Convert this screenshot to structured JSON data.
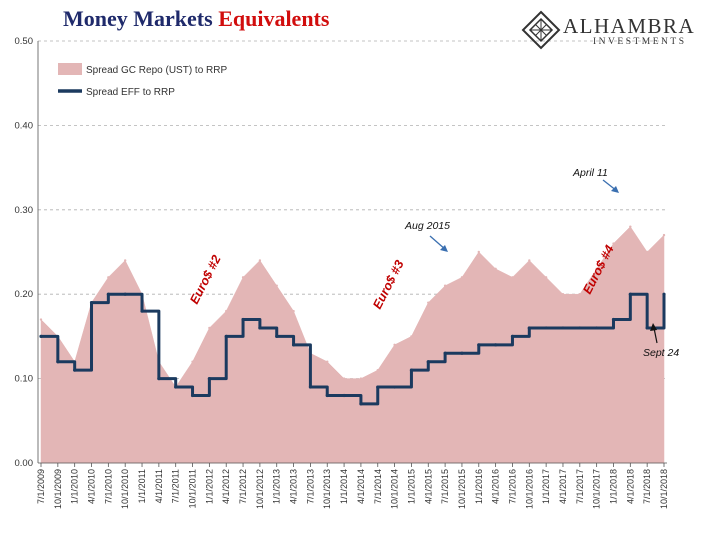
{
  "title": {
    "part1": "Money Markets",
    "part2": "Equivalents"
  },
  "logo": {
    "name": "ALHAMBRA",
    "subtitle": "INVESTMENTS",
    "icon": "diamond-lattice-icon"
  },
  "colors": {
    "title_blue": "#1f2a6b",
    "title_red": "#d10d0d",
    "repo_fill": "#e3b6b6",
    "eff_line": "#1b3a5f",
    "annotation_red": "#c00000",
    "arrow_blue": "#3a6fb0"
  },
  "chart_data": {
    "type": "area",
    "title": "Money Markets Equivalents",
    "xlabel": "",
    "ylabel": "",
    "ylim": [
      0,
      0.5
    ],
    "yticks": [
      "0.00",
      "0.10",
      "0.20",
      "0.30",
      "0.40",
      "0.50"
    ],
    "xticks": [
      "7/1/2009",
      "10/1/2009",
      "1/1/2010",
      "4/1/2010",
      "7/1/2010",
      "10/1/2010",
      "1/1/2011",
      "4/1/2011",
      "7/1/2011",
      "10/1/2011",
      "1/1/2012",
      "4/1/2012",
      "7/1/2012",
      "10/1/2012",
      "1/1/2013",
      "4/1/2013",
      "7/1/2013",
      "10/1/2013",
      "1/1/2014",
      "4/1/2014",
      "7/1/2014",
      "10/1/2014",
      "1/1/2015",
      "4/1/2015",
      "7/1/2015",
      "10/1/2015",
      "1/1/2016",
      "4/1/2016",
      "7/1/2016",
      "10/1/2016",
      "1/1/2017",
      "4/1/2017",
      "7/1/2017",
      "10/1/2017",
      "1/1/2018",
      "4/1/2018",
      "7/1/2018",
      "10/1/2018"
    ],
    "grid": true,
    "legend_position": "top-left",
    "series": [
      {
        "name": "Spread GC Repo (UST) to RRP",
        "type": "area",
        "color": "#e3b6b6",
        "x": [
          "7/1/2009",
          "10/1/2009",
          "1/1/2010",
          "4/1/2010",
          "7/1/2010",
          "10/1/2010",
          "1/1/2011",
          "4/1/2011",
          "7/1/2011",
          "10/1/2011",
          "1/1/2012",
          "4/1/2012",
          "7/1/2012",
          "10/1/2012",
          "1/1/2013",
          "4/1/2013",
          "7/1/2013",
          "10/1/2013",
          "1/1/2014",
          "4/1/2014",
          "7/1/2014",
          "10/1/2014",
          "1/1/2015",
          "4/1/2015",
          "7/1/2015",
          "10/1/2015",
          "1/1/2016",
          "4/1/2016",
          "7/1/2016",
          "10/1/2016",
          "1/1/2017",
          "4/1/2017",
          "7/1/2017",
          "10/1/2017",
          "1/1/2018",
          "4/1/2018",
          "7/1/2018",
          "10/1/2018"
        ],
        "values": [
          0.17,
          0.15,
          0.12,
          0.19,
          0.22,
          0.24,
          0.2,
          0.12,
          0.09,
          0.12,
          0.16,
          0.18,
          0.22,
          0.24,
          0.21,
          0.18,
          0.13,
          0.12,
          0.1,
          0.1,
          0.11,
          0.14,
          0.15,
          0.19,
          0.21,
          0.22,
          0.25,
          0.23,
          0.22,
          0.24,
          0.22,
          0.2,
          0.2,
          0.23,
          0.26,
          0.28,
          0.25,
          0.27
        ]
      },
      {
        "name": "Spread EFF to RRP",
        "type": "line",
        "color": "#1b3a5f",
        "x": [
          "7/1/2009",
          "10/1/2009",
          "1/1/2010",
          "4/1/2010",
          "7/1/2010",
          "10/1/2010",
          "1/1/2011",
          "4/1/2011",
          "7/1/2011",
          "10/1/2011",
          "1/1/2012",
          "4/1/2012",
          "7/1/2012",
          "10/1/2012",
          "1/1/2013",
          "4/1/2013",
          "7/1/2013",
          "10/1/2013",
          "1/1/2014",
          "4/1/2014",
          "7/1/2014",
          "10/1/2014",
          "1/1/2015",
          "4/1/2015",
          "7/1/2015",
          "10/1/2015",
          "1/1/2016",
          "4/1/2016",
          "7/1/2016",
          "10/1/2016",
          "1/1/2017",
          "4/1/2017",
          "7/1/2017",
          "10/1/2017",
          "1/1/2018",
          "4/1/2018",
          "7/1/2018",
          "10/1/2018"
        ],
        "values": [
          0.15,
          0.12,
          0.11,
          0.19,
          0.2,
          0.2,
          0.18,
          0.1,
          0.09,
          0.08,
          0.1,
          0.15,
          0.17,
          0.16,
          0.15,
          0.14,
          0.09,
          0.08,
          0.08,
          0.07,
          0.09,
          0.09,
          0.11,
          0.12,
          0.13,
          0.13,
          0.14,
          0.14,
          0.15,
          0.16,
          0.16,
          0.16,
          0.16,
          0.16,
          0.17,
          0.2,
          0.16,
          0.2
        ]
      }
    ],
    "annotations": {
      "euro2": "Euro$ #2",
      "euro3": "Euro$ #3",
      "euro4": "Euro$ #4",
      "aug2015": "Aug 2015",
      "april11": "April 11",
      "sept24": "Sept 24"
    }
  }
}
